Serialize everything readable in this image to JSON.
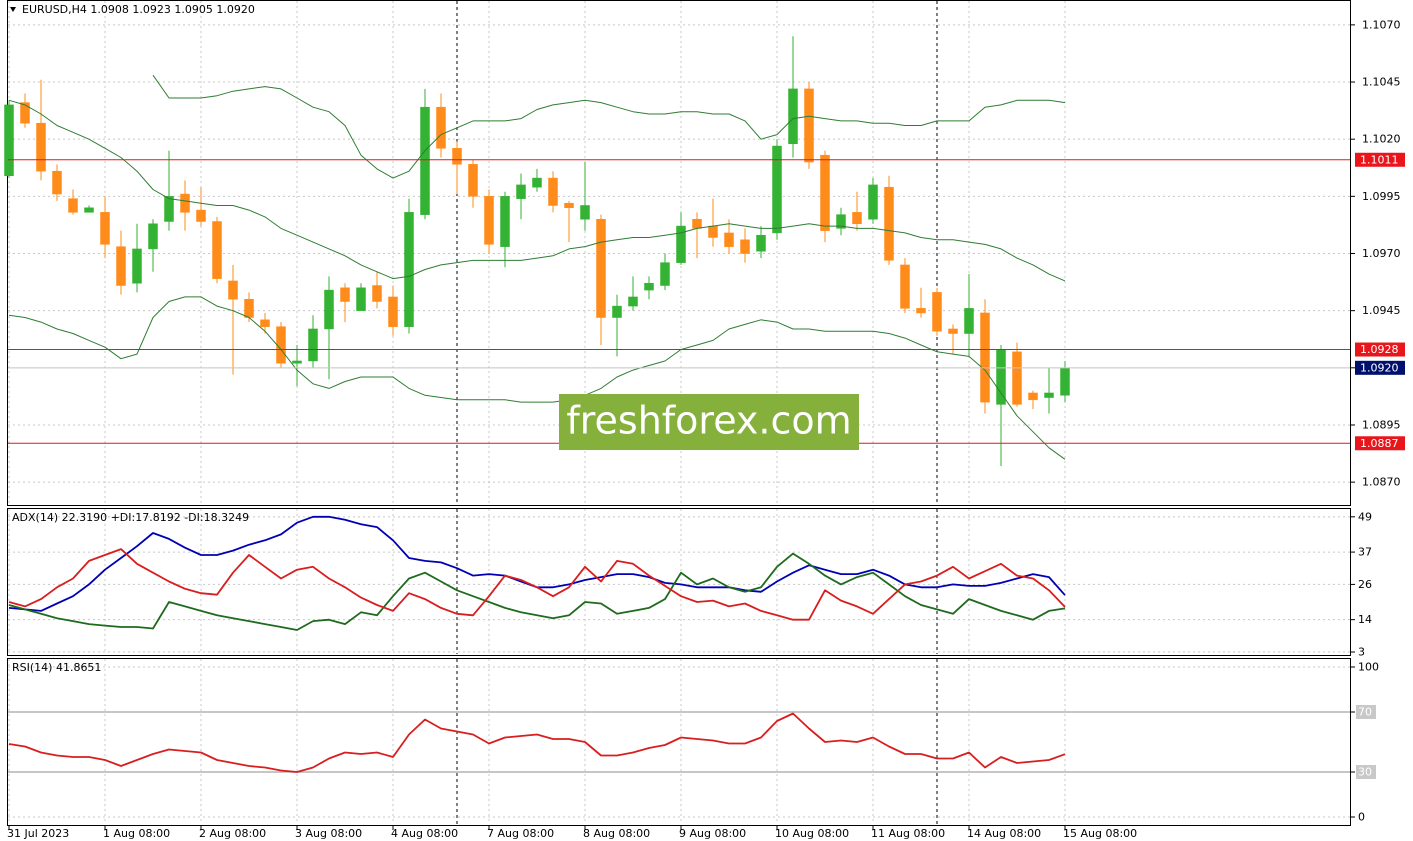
{
  "chart_data": [
    {
      "type": "candlestick",
      "title": "EURUSD,H4  1.0908 1.0923 1.0905 1.0920",
      "watermark": "freshforex.com",
      "categories": [
        "31 Jul 2023",
        null,
        null,
        null,
        null,
        null,
        "1 Aug 08:00",
        null,
        null,
        null,
        null,
        null,
        "2 Aug 08:00",
        null,
        null,
        null,
        null,
        null,
        "3 Aug 08:00",
        null,
        null,
        null,
        null,
        null,
        "4 Aug 08:00",
        null,
        null,
        null,
        null,
        null,
        "7 Aug 08:00",
        null,
        null,
        null,
        null,
        null,
        "8 Aug 08:00",
        null,
        null,
        null,
        null,
        null,
        "9 Aug 08:00",
        null,
        null,
        null,
        null,
        null,
        "10 Aug 08:00",
        null,
        null,
        null,
        null,
        null,
        "11 Aug 08:00",
        null,
        null,
        null,
        null,
        null,
        "14 Aug 08:00",
        null,
        null,
        null,
        null,
        null,
        "15 Aug 08:00"
      ],
      "open": [
        1.1004,
        1.1036,
        1.1027,
        1.1006,
        1.0994,
        1.0988,
        1.0988,
        1.0973,
        1.0957,
        1.0972,
        1.0984,
        1.0996,
        1.0989,
        1.0984,
        1.0958,
        1.095,
        1.0941,
        1.0938,
        1.0922,
        1.0923,
        1.0937,
        1.0955,
        1.0945,
        1.0956,
        1.0951,
        1.0938,
        1.0987,
        1.1034,
        1.1016,
        1.1009,
        1.0995,
        1.0973,
        1.0994,
        1.0999,
        1.1003,
        1.0992,
        1.0985,
        1.0985,
        1.0942,
        1.0947,
        1.0954,
        1.0956,
        1.0966,
        1.0985,
        1.0982,
        1.0979,
        1.0976,
        1.0971,
        1.0979,
        1.1018,
        1.1042,
        1.1013,
        1.0981,
        1.0988,
        1.0985,
        1.0999,
        1.0965,
        1.0946,
        1.0953,
        1.0937,
        1.0935,
        1.0944,
        1.0904,
        1.0927,
        1.0909,
        1.0907,
        1.0908
      ],
      "high": [
        1.1037,
        1.104,
        1.1046,
        1.1009,
        1.0998,
        1.0991,
        1.0995,
        1.098,
        1.0983,
        1.0985,
        1.1015,
        1.1002,
        1.0999,
        1.0986,
        1.0965,
        1.0953,
        1.0944,
        1.094,
        1.093,
        1.0943,
        1.096,
        1.0957,
        1.0957,
        1.0962,
        1.0956,
        1.0994,
        1.1042,
        1.104,
        1.1019,
        1.1011,
        1.0998,
        1.0997,
        1.1005,
        1.1007,
        1.1006,
        1.0993,
        1.101,
        1.0987,
        1.0952,
        1.096,
        1.096,
        1.097,
        1.0988,
        1.0988,
        1.0994,
        1.0985,
        1.0981,
        1.0982,
        1.102,
        1.1065,
        1.1045,
        1.1015,
        1.099,
        1.0997,
        1.1003,
        1.1004,
        1.0968,
        1.0955,
        1.0955,
        1.0939,
        1.0961,
        1.095,
        1.093,
        1.0931,
        1.091,
        1.092,
        1.0923
      ],
      "low": [
        1.1003,
        1.1025,
        1.1002,
        1.0993,
        1.0987,
        1.0988,
        1.0968,
        1.0952,
        1.0953,
        1.0962,
        1.098,
        1.098,
        1.0982,
        1.0957,
        1.0917,
        1.094,
        1.0935,
        1.092,
        1.0912,
        1.092,
        1.0915,
        1.094,
        1.0945,
        1.0946,
        1.0934,
        1.0935,
        1.0985,
        1.1012,
        1.0996,
        1.099,
        1.097,
        1.0964,
        1.0985,
        1.0997,
        1.0988,
        1.0975,
        1.098,
        1.093,
        1.0925,
        1.0945,
        1.095,
        1.0954,
        1.0965,
        1.0968,
        1.0973,
        1.097,
        1.0966,
        1.0968,
        1.0976,
        1.1012,
        1.1007,
        1.0975,
        1.0978,
        1.098,
        1.0983,
        1.0965,
        1.0944,
        1.0942,
        1.0934,
        1.0926,
        1.0925,
        1.09,
        1.0877,
        1.0903,
        1.0902,
        1.09,
        1.0905
      ],
      "close": [
        1.1035,
        1.1027,
        1.1006,
        1.0996,
        1.0988,
        1.099,
        1.0974,
        1.0956,
        1.0972,
        1.0983,
        1.0995,
        1.0988,
        1.0984,
        1.0959,
        1.095,
        1.0942,
        1.0938,
        1.0922,
        1.0923,
        1.0937,
        1.0954,
        1.0949,
        1.0955,
        1.0949,
        1.0938,
        1.0988,
        1.1034,
        1.1016,
        1.1009,
        1.0995,
        1.0974,
        1.0995,
        1.1,
        1.1003,
        1.0991,
        1.099,
        1.0991,
        1.0942,
        1.0947,
        1.0951,
        1.0957,
        1.0966,
        1.0982,
        1.0981,
        1.0977,
        1.0973,
        1.097,
        1.0978,
        1.1017,
        1.1042,
        1.101,
        1.098,
        1.0987,
        1.0983,
        1.1,
        1.0967,
        1.0946,
        1.0944,
        1.0936,
        1.0935,
        1.0946,
        1.0905,
        1.0928,
        1.0904,
        1.0906,
        1.0909,
        1.092
      ],
      "up_color": "#33b233",
      "down_color": "#ff8c1a",
      "bands": [
        {
          "color": "#2e7d32",
          "values": [
            null,
            null,
            null,
            null,
            null,
            null,
            null,
            null,
            null,
            1.1048,
            1.1038,
            1.1038,
            1.1038,
            1.1039,
            1.1041,
            1.1042,
            1.1043,
            1.1042,
            1.1038,
            1.1034,
            1.1032,
            1.1026,
            1.1013,
            1.1007,
            1.1003,
            1.1006,
            1.1015,
            1.1022,
            1.1025,
            1.1028,
            1.1028,
            1.1028,
            1.1029,
            1.1033,
            1.1035,
            1.1036,
            1.1037,
            1.1036,
            1.1034,
            1.1032,
            1.1031,
            1.1031,
            1.1032,
            1.1032,
            1.1031,
            1.1031,
            1.1028,
            1.102,
            1.1022,
            1.1029,
            1.103,
            1.1029,
            1.1028,
            1.1028,
            1.1027,
            1.1027,
            1.1026,
            1.1026,
            1.1028,
            1.1028,
            1.1028,
            1.1034,
            1.1035,
            1.1037,
            1.1037,
            1.1037,
            1.1036
          ]
        },
        {
          "color": "#2e7d32",
          "values": [
            1.1037,
            1.1035,
            1.1031,
            1.1026,
            1.1023,
            1.102,
            1.1016,
            1.1012,
            1.1006,
            1.0998,
            1.0994,
            1.0993,
            1.0992,
            1.0991,
            1.0991,
            1.0989,
            1.0986,
            1.0981,
            1.0978,
            1.0975,
            1.0972,
            1.0969,
            1.0965,
            1.0962,
            1.0959,
            1.096,
            1.0963,
            1.0965,
            1.0966,
            1.0967,
            1.0967,
            1.0967,
            1.0967,
            1.0968,
            1.0969,
            1.0972,
            1.0973,
            1.0975,
            1.0976,
            1.0977,
            1.0977,
            1.0978,
            1.0979,
            1.0981,
            1.0982,
            1.0983,
            1.0982,
            1.0981,
            1.0981,
            1.0982,
            1.0983,
            1.0982,
            1.0982,
            1.0981,
            1.0981,
            1.098,
            1.0979,
            1.0977,
            1.0976,
            1.0976,
            1.0975,
            1.0974,
            1.0972,
            1.0968,
            1.0965,
            1.0961,
            1.0958
          ]
        },
        {
          "color": "#2e7d32",
          "values": [
            1.0943,
            1.0942,
            1.094,
            1.0937,
            1.0935,
            1.0932,
            1.0929,
            1.0924,
            1.0926,
            1.0942,
            1.0949,
            1.0951,
            1.0951,
            1.0947,
            1.0945,
            1.0942,
            1.0936,
            1.0928,
            1.0919,
            1.0913,
            1.0911,
            1.0914,
            1.0916,
            1.0916,
            1.0916,
            1.0911,
            1.0908,
            1.0907,
            1.0906,
            1.0906,
            1.0906,
            1.0906,
            1.0905,
            1.0905,
            1.0905,
            1.0906,
            1.0908,
            1.0911,
            1.0916,
            1.0919,
            1.0921,
            1.0923,
            1.0928,
            1.093,
            1.0932,
            1.0937,
            1.0939,
            1.0941,
            1.094,
            1.0937,
            1.0937,
            1.0936,
            1.0936,
            1.0936,
            1.0936,
            1.0935,
            1.0933,
            1.093,
            1.0927,
            1.0926,
            1.0925,
            1.0919,
            1.0909,
            1.0899,
            1.0892,
            1.0885,
            1.088
          ]
        }
      ],
      "hlines": [
        1.1011,
        1.0928,
        1.0887
      ],
      "hline_color": "#e8151b",
      "last_price": {
        "value": 1.092,
        "label": "1.0920"
      },
      "last_price_color": "#00106e",
      "ylim": [
        1.086,
        1.108
      ],
      "yticks": [
        {
          "value": 1.107,
          "label": "1.1070"
        },
        1.1045,
        {
          "value": 1.102,
          "label": "1.1020"
        },
        1.0995,
        {
          "value": 1.097,
          "label": "1.0970"
        },
        1.0945,
        {
          "value": 1.092,
          "label": "1.0920"
        },
        1.0895,
        {
          "value": 1.087,
          "label": "1.0870"
        }
      ],
      "grid": true
    },
    {
      "type": "line",
      "title": "ADX(14) 22.3190 +DI:17.8192 -DI:18.3249",
      "series": [
        {
          "color": "#0000b4",
          "values": [
            18,
            17.5,
            17,
            19.5,
            22,
            26,
            31,
            35,
            39,
            43.5,
            41.5,
            38.5,
            36,
            36,
            37.5,
            39.5,
            41,
            43,
            47,
            49,
            49,
            48,
            46.5,
            45.5,
            41,
            35,
            34,
            33.5,
            31.5,
            29,
            29.5,
            29,
            27,
            25,
            25,
            26,
            27.5,
            28.5,
            29.5,
            29.5,
            28.5,
            26.5,
            26,
            25,
            25,
            25,
            24,
            23.5,
            27,
            30,
            32.5,
            31,
            29.5,
            29.5,
            31,
            29,
            26,
            25,
            25,
            26,
            25.5,
            25.5,
            26.5,
            28,
            29.5,
            28.5,
            22.319
          ]
        },
        {
          "color": "#1e6b1e",
          "values": [
            19,
            17.5,
            16,
            14.5,
            13.5,
            12.5,
            12,
            11.5,
            11.5,
            11,
            20,
            18.5,
            17,
            15.5,
            14.5,
            13.5,
            12.5,
            11.5,
            10.5,
            13.5,
            14,
            12.5,
            16.5,
            15.5,
            22,
            28,
            30,
            27,
            24,
            22,
            20,
            18,
            16.5,
            15.5,
            14.5,
            15.5,
            20,
            19.5,
            16,
            17,
            18,
            21,
            30,
            26,
            28,
            25,
            23.5,
            25,
            32,
            36.5,
            33,
            29,
            26,
            28.5,
            30,
            26,
            22,
            19,
            17.5,
            16,
            21,
            19,
            17,
            15.5,
            14,
            17,
            17.8192
          ]
        },
        {
          "color": "#d81e1e",
          "values": [
            20,
            18.5,
            21,
            25,
            28,
            34,
            36,
            38,
            33,
            30,
            27,
            24.5,
            23,
            22.5,
            30,
            36,
            32,
            28,
            31,
            32,
            28,
            25,
            21.5,
            19,
            17,
            23,
            21,
            18,
            16,
            15.5,
            22,
            29,
            27.5,
            25,
            22,
            25,
            32,
            27,
            34,
            33,
            29,
            25.5,
            22,
            20,
            20.5,
            18.5,
            19.5,
            17,
            15.5,
            14,
            14,
            24,
            20.5,
            18.5,
            16,
            21,
            26,
            27,
            29,
            32,
            28,
            30.5,
            33,
            29,
            28,
            24,
            18.3249
          ]
        }
      ],
      "ylim": [
        3,
        52
      ],
      "yticks": [
        49,
        37,
        26,
        14,
        3
      ],
      "grid": true
    },
    {
      "type": "line",
      "title": "RSI(14) 41.8651",
      "series": [
        {
          "color": "#d81e1e",
          "values": [
            48.7,
            47,
            43,
            41,
            40,
            40,
            38,
            34,
            38,
            42,
            45,
            44,
            43,
            38,
            36,
            34,
            33,
            31,
            30,
            33,
            39,
            43,
            42,
            43,
            40,
            55,
            65,
            59,
            57,
            55,
            49,
            53,
            54,
            55,
            52,
            52,
            50,
            41,
            41,
            43,
            46,
            48,
            53,
            52,
            51,
            49,
            49,
            53,
            64,
            69,
            59,
            50,
            51,
            50,
            53,
            47,
            42,
            42,
            39,
            39,
            43,
            33,
            40,
            36,
            37,
            38,
            41.8651
          ]
        }
      ],
      "levels": [
        70,
        30
      ],
      "level_color": "#b4b4b4",
      "ylim": [
        0,
        100
      ],
      "yticks": [
        100,
        70,
        30,
        0
      ],
      "grid": true
    }
  ]
}
